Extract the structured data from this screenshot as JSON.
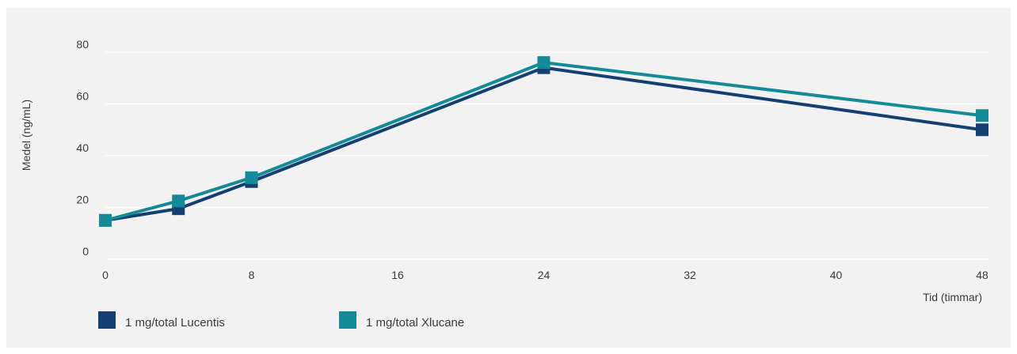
{
  "chart_data": {
    "type": "line",
    "xlabel": "Tid (timmar)",
    "ylabel": "Medel (ng/mL)",
    "xlim": [
      0,
      48
    ],
    "ylim": [
      0,
      80
    ],
    "x_ticks": [
      0,
      8,
      16,
      24,
      32,
      40,
      48
    ],
    "y_ticks": [
      0,
      20,
      40,
      60,
      80
    ],
    "grid": "horizontal",
    "legend_position": "bottom-left",
    "series": [
      {
        "name": "1 mg/total Lucentis",
        "color": "#133f72",
        "marker": "square",
        "points": [
          [
            0,
            15
          ],
          [
            4,
            19.5
          ],
          [
            8,
            30
          ],
          [
            24,
            74
          ],
          [
            48,
            50
          ]
        ]
      },
      {
        "name": "1 mg/total Xlucane",
        "color": "#138a98",
        "marker": "square",
        "points": [
          [
            0,
            15
          ],
          [
            4,
            22.5
          ],
          [
            8,
            31.5
          ],
          [
            24,
            76
          ],
          [
            48,
            55.5
          ]
        ]
      }
    ]
  }
}
